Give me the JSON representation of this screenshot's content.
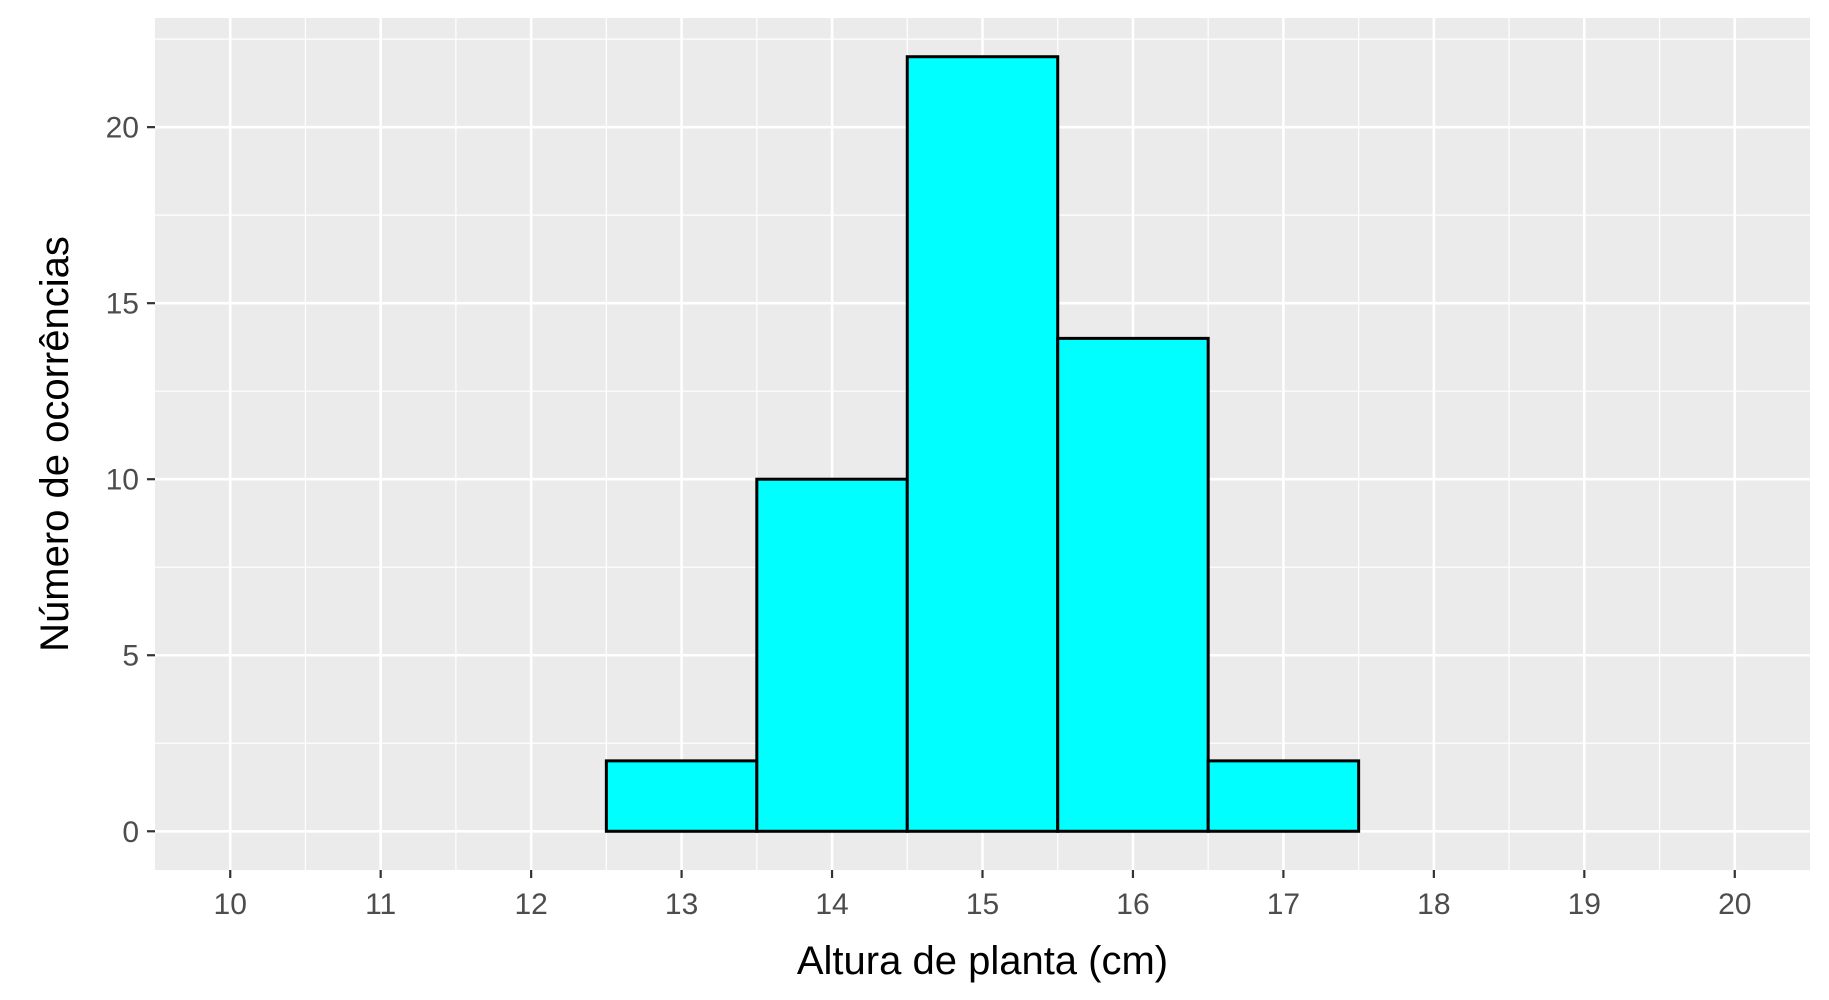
{
  "chart_data": {
    "type": "bar",
    "subtype": "histogram",
    "title": "",
    "xlabel": "Altura de planta (cm)",
    "ylabel": "Número de ocorrências",
    "bin_width": 1,
    "bins": [
      {
        "x0": 10.5,
        "x1": 11.5,
        "count": 0
      },
      {
        "x0": 11.5,
        "x1": 12.5,
        "count": 0
      },
      {
        "x0": 12.5,
        "x1": 13.5,
        "count": 2
      },
      {
        "x0": 13.5,
        "x1": 14.5,
        "count": 10
      },
      {
        "x0": 14.5,
        "x1": 15.5,
        "count": 22
      },
      {
        "x0": 15.5,
        "x1": 16.5,
        "count": 14
      },
      {
        "x0": 16.5,
        "x1": 17.5,
        "count": 2
      },
      {
        "x0": 17.5,
        "x1": 18.5,
        "count": 0
      },
      {
        "x0": 18.5,
        "x1": 19.5,
        "count": 0
      }
    ],
    "xlim": [
      9.5,
      20.5
    ],
    "ylim": [
      -1.1,
      23.1
    ],
    "x_ticks": [
      10,
      11,
      12,
      13,
      14,
      15,
      16,
      17,
      18,
      19,
      20
    ],
    "y_ticks": [
      0,
      5,
      10,
      15,
      20
    ],
    "grid": true,
    "legend": "none",
    "colors": {
      "bar_fill": "#00FFFF",
      "bar_stroke": "#000000",
      "panel_background": "#EBEBEB",
      "grid": "#FFFFFF",
      "tick_text": "#4D4D4D",
      "tick_mark": "#333333"
    }
  }
}
